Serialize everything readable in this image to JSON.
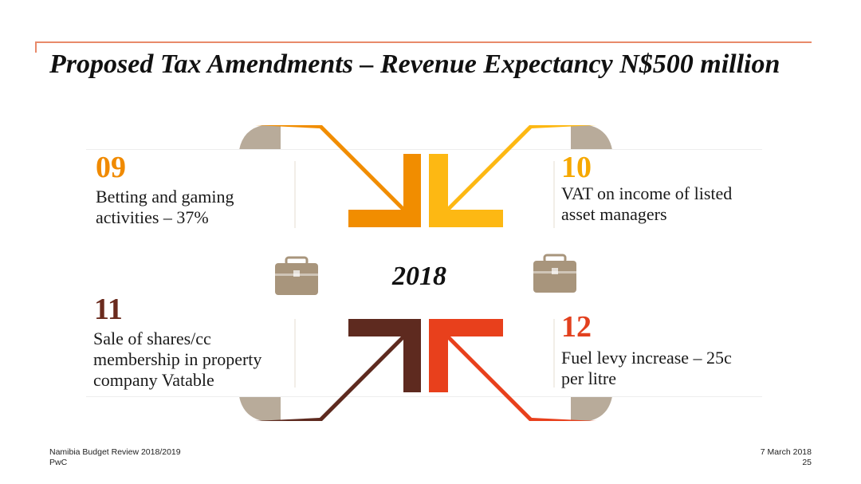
{
  "slide": {
    "title": "Proposed Tax Amendments – Revenue Expectancy N$500 million",
    "center_label": "2018"
  },
  "cards": [
    {
      "number": "09",
      "text": "Betting and gaming activities – 37%",
      "color": "#f08a00"
    },
    {
      "number": "10",
      "text": "VAT on income of listed asset managers",
      "color": "#f6a800"
    },
    {
      "number": "11",
      "text": "Sale of shares/cc membership in property company Vatable",
      "color": "#6b2b1e"
    },
    {
      "number": "12",
      "text": "Fuel levy increase – 25c per litre",
      "color": "#e2401e"
    }
  ],
  "icons": [
    "briefcase-icon",
    "briefcase-icon"
  ],
  "footer": {
    "left_line1": "Namibia Budget Review 2018/2019",
    "left_line2": "PwC",
    "right_line1": "7 March 2018",
    "right_line2": "25"
  },
  "colors": {
    "accent_line": "#e88a6a",
    "arrow_orange": "#f18d00",
    "arrow_yellow": "#fdb813",
    "arrow_brown": "#5e2a1f",
    "arrow_red": "#e8401c",
    "fold_grey": "#b8ab9a",
    "briefcase": "#a8957c"
  }
}
